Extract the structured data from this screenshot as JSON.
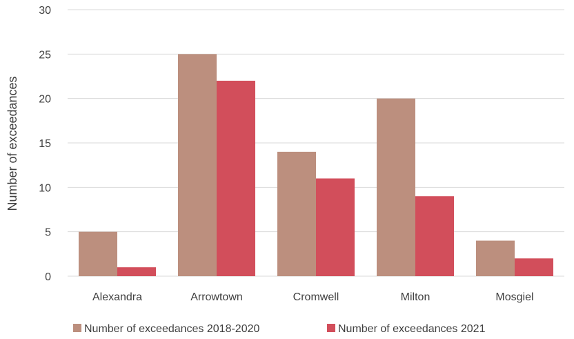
{
  "chart_data": {
    "type": "bar",
    "title": "",
    "xlabel": "",
    "ylabel": "Number of exceedances",
    "ylim": [
      0,
      30
    ],
    "yticks": [
      0,
      5,
      10,
      15,
      20,
      25,
      30
    ],
    "grid": true,
    "legend_position": "bottom",
    "categories": [
      "Alexandra",
      "Arrowtown",
      "Cromwell",
      "Milton",
      "Mosgiel"
    ],
    "series": [
      {
        "name": "Number of exceedances 2018-2020",
        "color": "#bc8f7e",
        "values": [
          5,
          25,
          14,
          20,
          4
        ]
      },
      {
        "name": "Number of exceedances 2021",
        "color": "#d24e5b",
        "values": [
          1,
          22,
          11,
          9,
          2
        ]
      }
    ]
  }
}
